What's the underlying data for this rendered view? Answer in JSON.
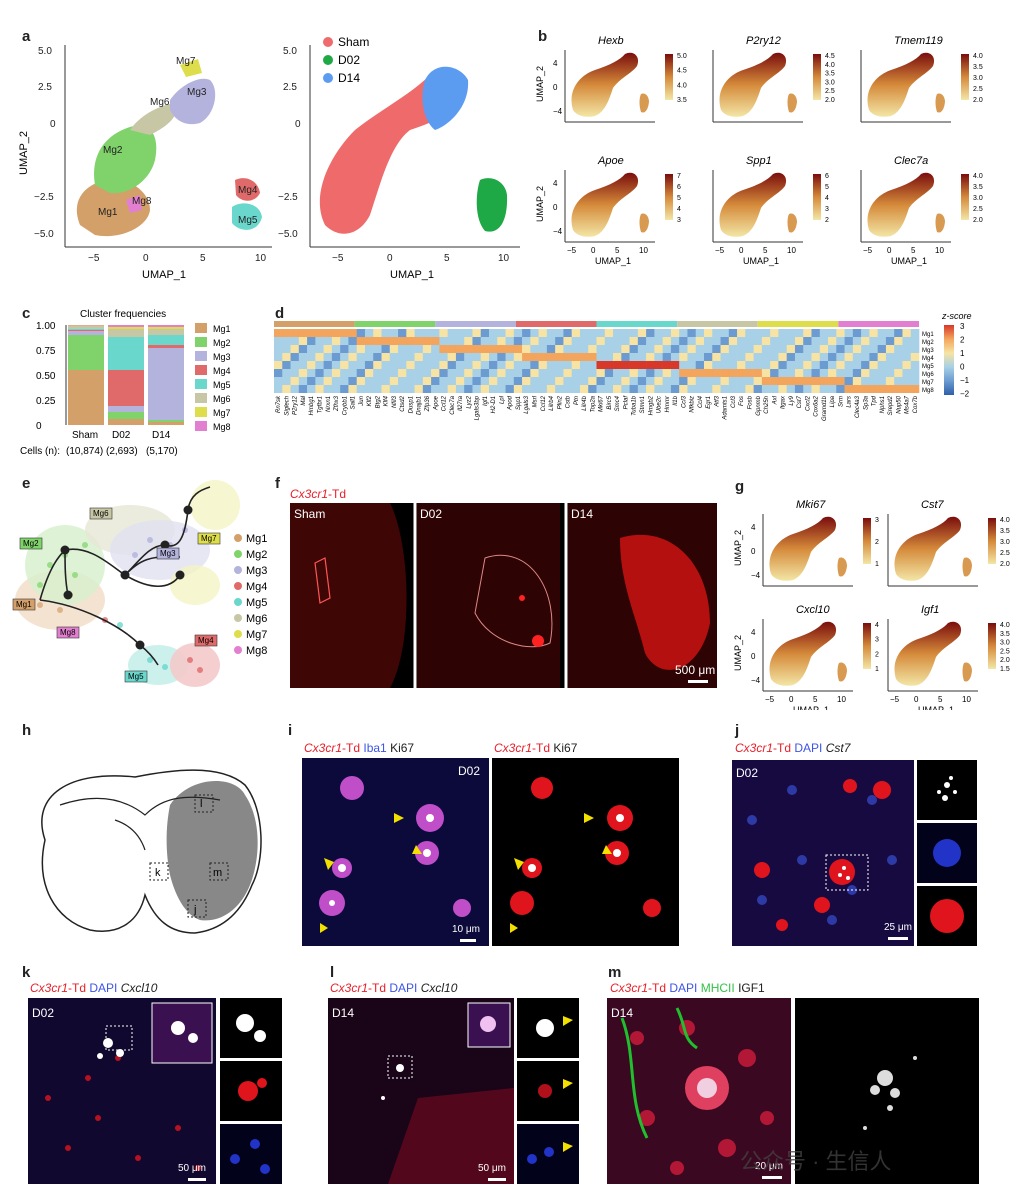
{
  "panels": {
    "a": "a",
    "b": "b",
    "c": "c",
    "d": "d",
    "e": "e",
    "f": "f",
    "g": "g",
    "h": "h",
    "i": "i",
    "j": "j",
    "k": "k",
    "l": "l",
    "m": "m"
  },
  "panel_a": {
    "left": {
      "xlabel": "UMAP_1",
      "ylabel": "UMAP_2",
      "xticks": [
        "−5",
        "0",
        "5",
        "10"
      ],
      "yticks": [
        "5.0",
        "2.5",
        "0",
        "−2.5",
        "−5.0"
      ],
      "cluster_labels": [
        "Mg1",
        "Mg2",
        "Mg3",
        "Mg4",
        "Mg5",
        "Mg6",
        "Mg7",
        "Mg8"
      ]
    },
    "right": {
      "xlabel": "UMAP_1",
      "xticks": [
        "−5",
        "0",
        "5",
        "10"
      ],
      "yticks": [
        "5.0",
        "2.5",
        "0",
        "−2.5",
        "−5.0"
      ],
      "legend": [
        {
          "label": "Sham",
          "color": "#ef6b6b"
        },
        {
          "label": "D02",
          "color": "#1fa846"
        },
        {
          "label": "D14",
          "color": "#5b9cf0"
        }
      ]
    },
    "cluster_colors": {
      "Mg1": "#d4a06a",
      "Mg2": "#7fd36a",
      "Mg3": "#b3b3dd",
      "Mg4": "#e06a6a",
      "Mg5": "#6ad7cd",
      "Mg6": "#c7c7a6",
      "Mg7": "#dede4d",
      "Mg8": "#e37fd0"
    }
  },
  "panel_b": {
    "genes": [
      {
        "name": "Hexb",
        "scale": [
          "5.0",
          "4.5",
          "4.0",
          "3.5"
        ]
      },
      {
        "name": "P2ry12",
        "scale": [
          "4.5",
          "4.0",
          "3.5",
          "3.0",
          "2.5",
          "2.0"
        ]
      },
      {
        "name": "Tmem119",
        "scale": [
          "4.0",
          "3.5",
          "3.0",
          "2.5",
          "2.0"
        ]
      },
      {
        "name": "Apoe",
        "scale": [
          "7",
          "6",
          "5",
          "4",
          "3"
        ]
      },
      {
        "name": "Spp1",
        "scale": [
          "6",
          "5",
          "4",
          "3",
          "2"
        ]
      },
      {
        "name": "Clec7a",
        "scale": [
          "4.0",
          "3.5",
          "3.0",
          "2.5",
          "2.0"
        ]
      }
    ],
    "xlabel": "UMAP_1",
    "ylabel": "UMAP_2",
    "xticks": [
      "−5",
      "0",
      "5",
      "10"
    ],
    "yticks": [
      "4",
      "0",
      "−4"
    ]
  },
  "chart_data": [
    {
      "type": "bar",
      "title": "Cluster frequencies",
      "categories": [
        "Sham",
        "D02",
        "D14"
      ],
      "cells_label": "Cells (n):",
      "cells": [
        "(10,874)",
        "(2,693)",
        "(5,170)"
      ],
      "yticks": [
        "1.00",
        "0.75",
        "0.50",
        "0.25",
        "0"
      ],
      "ylim": [
        0,
        1
      ],
      "series": [
        {
          "name": "Mg1",
          "color": "#d4a06a",
          "values": [
            0.55,
            0.06,
            0.03
          ]
        },
        {
          "name": "Mg2",
          "color": "#7fd36a",
          "values": [
            0.35,
            0.07,
            0.02
          ]
        },
        {
          "name": "Mg3",
          "color": "#b3b3dd",
          "values": [
            0.04,
            0.06,
            0.72
          ]
        },
        {
          "name": "Mg4",
          "color": "#e06a6a",
          "values": [
            0.01,
            0.36,
            0.03
          ]
        },
        {
          "name": "Mg5",
          "color": "#6ad7cd",
          "values": [
            0.01,
            0.33,
            0.1
          ]
        },
        {
          "name": "Mg6",
          "color": "#c7c7a6",
          "values": [
            0.03,
            0.08,
            0.06
          ]
        },
        {
          "name": "Mg7",
          "color": "#dede4d",
          "values": [
            0.005,
            0.02,
            0.02
          ]
        },
        {
          "name": "Mg8",
          "color": "#e37fd0",
          "values": [
            0.005,
            0.02,
            0.02
          ]
        }
      ]
    },
    {
      "type": "heatmap",
      "legend_title": "z-score",
      "scale": [
        "3",
        "2",
        "1",
        "0",
        "−1",
        "−2"
      ],
      "rows": [
        "Mg1",
        "Mg2",
        "Mg3",
        "Mg4",
        "Mg5",
        "Mg6",
        "Mg7",
        "Mg8"
      ],
      "genes": [
        "Rn7sk",
        "Siglech",
        "P2ry12",
        "Mal",
        "Hmbg1",
        "Tgfbr1",
        "Nrxn1",
        "Zfhx3",
        "Crybb1",
        "Sall1",
        "Jun",
        "Klf2",
        "Btg2",
        "Klf4",
        "Nfil3",
        "Ctsd2",
        "Dusp1",
        "Dnajb1",
        "Zfp36",
        "Apoe",
        "Ccl12",
        "Clec7a",
        "Il27ra",
        "Lyz2",
        "Lgals3bp",
        "Igf1",
        "H2-D1",
        "Lpl",
        "Apod",
        "Spp1",
        "Lgals3",
        "Msrl",
        "Ccl12",
        "Lilrb4",
        "Plin2",
        "Cstb",
        "Ptn",
        "Lilr4b",
        "Top2a",
        "Mki67",
        "Birc5",
        "Smc4",
        "Pclaf",
        "Tuba1b",
        "Stmn1",
        "Hmgb2",
        "Ube2c",
        "Hmmr",
        "Il1b",
        "Ccl3",
        "Nfkbiz",
        "Ccl4",
        "Egr1",
        "Atf3",
        "Adamts1",
        "Ccl3",
        "Fos",
        "Fosb",
        "Gpnmb",
        "Ch25h",
        "Axl",
        "Itgax",
        "Ly9",
        "Cst7",
        "Cxcl2",
        "Cox6a2",
        "Gramd1b",
        "Lipa",
        "Srm",
        "Lars",
        "Clec4a3",
        "Sp3a",
        "Tpd",
        "Nphs1",
        "Srepd2",
        "Nup50",
        "Ms4a7",
        "Cox7b"
      ],
      "group_colors": [
        "#d4a06a",
        "#7fd36a",
        "#b3b3dd",
        "#e06a6a",
        "#6ad7cd",
        "#c7c7a6",
        "#dede4d",
        "#e37fd0"
      ]
    }
  ],
  "panel_e": {
    "labels": [
      "Mg6",
      "Mg2",
      "Mg3",
      "Mg7",
      "Mg1",
      "Mg8",
      "Mg4",
      "Mg5"
    ],
    "legend": [
      "Mg1",
      "Mg2",
      "Mg3",
      "Mg4",
      "Mg5",
      "Mg6",
      "Mg7",
      "Mg8"
    ]
  },
  "panel_f": {
    "title": "Cx3cr1",
    "title_suffix": "-Td",
    "panels": [
      "Sham",
      "D02",
      "D14"
    ],
    "scale": "500 μm"
  },
  "panel_g": {
    "genes": [
      {
        "name": "Mki67",
        "scale": [
          "3",
          "2",
          "1"
        ]
      },
      {
        "name": "Cst7",
        "scale": [
          "4.0",
          "3.5",
          "3.0",
          "2.5",
          "2.0"
        ]
      },
      {
        "name": "Cxcl10",
        "scale": [
          "4",
          "3",
          "2",
          "1"
        ]
      },
      {
        "name": "Igf1",
        "scale": [
          "4.0",
          "3.5",
          "3.0",
          "2.5",
          "2.0",
          "1.5"
        ]
      }
    ],
    "xlabel": "UMAP_1",
    "ylabel": "UMAP_2",
    "xticks": [
      "−5",
      "0",
      "5",
      "10"
    ],
    "yticks": [
      "4",
      "0",
      "−4"
    ]
  },
  "panel_h": {
    "boxes": [
      "k",
      "l",
      "m",
      "j"
    ]
  },
  "panel_i": {
    "left_title": [
      "Cx3cr1",
      "-Td",
      "Iba1",
      "Ki67"
    ],
    "right_title": [
      "Cx3cr1",
      "-Td",
      "Ki67"
    ],
    "tag": "D02",
    "scale": "10 μm"
  },
  "panel_j": {
    "title": [
      "Cx3cr1",
      "-Td",
      "DAPI",
      "Cst7"
    ],
    "tag": "D02",
    "scale": "25 μm"
  },
  "panel_k": {
    "title": [
      "Cx3cr1",
      "-Td",
      "DAPI",
      "Cxcl10"
    ],
    "tag": "D02",
    "scale": "50 μm"
  },
  "panel_l": {
    "title": [
      "Cx3cr1",
      "-Td",
      "DAPI",
      "Cxcl10"
    ],
    "tag": "D14",
    "scale": "50 μm"
  },
  "panel_m": {
    "title": [
      "Cx3cr1",
      "-Td",
      "DAPI",
      "MHCII",
      "IGF1"
    ],
    "tag": "D14",
    "scale": "20 μm"
  },
  "watermark": "公众号 · 生信人"
}
